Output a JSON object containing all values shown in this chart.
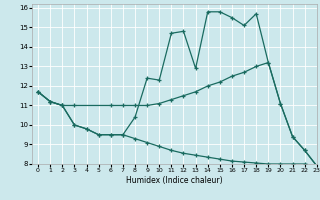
{
  "xlabel": "Humidex (Indice chaleur)",
  "xlim": [
    -0.5,
    23
  ],
  "ylim": [
    8,
    16.2
  ],
  "xticks": [
    0,
    1,
    2,
    3,
    4,
    5,
    6,
    7,
    8,
    9,
    10,
    11,
    12,
    13,
    14,
    15,
    16,
    17,
    18,
    19,
    20,
    21,
    22,
    23
  ],
  "yticks": [
    8,
    9,
    10,
    11,
    12,
    13,
    14,
    15,
    16
  ],
  "bg_color": "#cce8ec",
  "line_color": "#1a6b60",
  "line1_x": [
    0,
    1,
    2,
    3,
    4,
    5,
    6,
    7,
    8,
    9,
    10,
    11,
    12,
    13,
    14,
    15,
    16,
    17,
    18,
    19,
    20,
    21,
    22,
    23
  ],
  "line1_y": [
    11.7,
    11.2,
    11.0,
    10.0,
    9.8,
    9.5,
    9.5,
    9.5,
    10.4,
    12.4,
    12.3,
    14.7,
    14.8,
    12.9,
    15.8,
    15.8,
    15.5,
    15.1,
    15.7,
    13.2,
    11.1,
    9.4,
    8.7,
    7.9
  ],
  "line2_x": [
    0,
    1,
    2,
    3,
    6,
    7,
    8,
    9,
    10,
    11,
    12,
    13,
    14,
    15,
    16,
    17,
    18,
    19,
    20,
    21,
    22,
    23
  ],
  "line2_y": [
    11.7,
    11.2,
    11.0,
    11.0,
    11.0,
    11.0,
    11.0,
    11.0,
    11.1,
    11.3,
    11.5,
    11.7,
    12.0,
    12.2,
    12.5,
    12.7,
    13.0,
    13.2,
    11.1,
    9.4,
    8.7,
    7.9
  ],
  "line3_x": [
    0,
    1,
    2,
    3,
    4,
    5,
    6,
    7,
    8,
    9,
    10,
    11,
    12,
    13,
    14,
    15,
    16,
    17,
    18,
    19,
    20,
    21,
    22,
    23
  ],
  "line3_y": [
    11.7,
    11.2,
    11.0,
    10.0,
    9.8,
    9.5,
    9.5,
    9.5,
    9.3,
    9.1,
    8.9,
    8.7,
    8.55,
    8.45,
    8.35,
    8.25,
    8.15,
    8.1,
    8.05,
    8.0,
    8.0,
    8.0,
    8.0,
    7.9
  ]
}
